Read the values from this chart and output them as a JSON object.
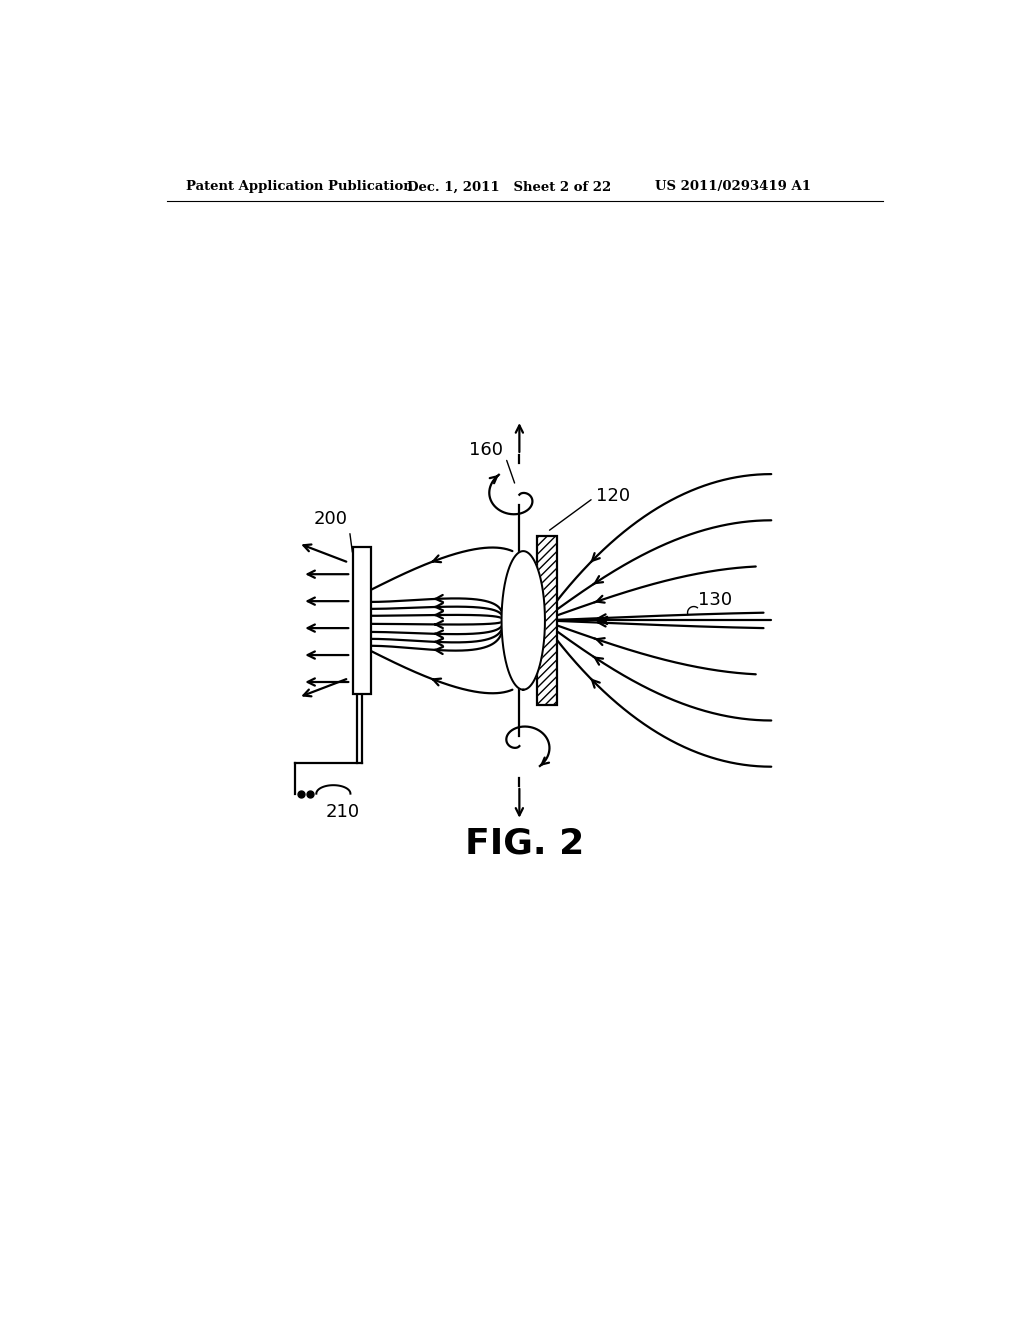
{
  "background_color": "#ffffff",
  "header_left": "Patent Application Publication",
  "header_mid": "Dec. 1, 2011   Sheet 2 of 22",
  "header_right": "US 2011/0293419 A1",
  "fig_label": "FIG. 2",
  "line_color": "#000000",
  "lw": 1.6
}
